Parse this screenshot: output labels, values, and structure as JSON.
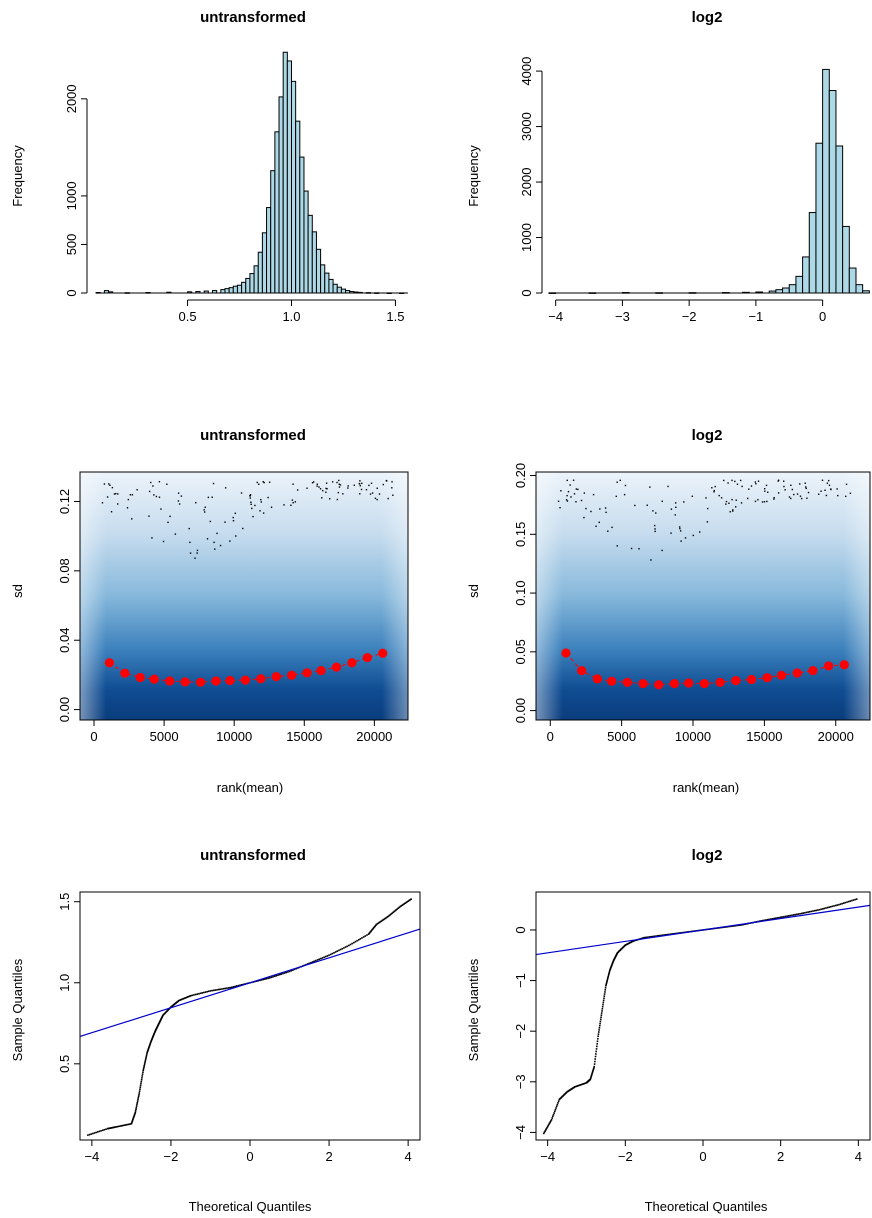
{
  "chart_data": [
    {
      "type": "bar",
      "title": "untransformed",
      "xlabel": "",
      "ylabel": "Frequency",
      "xlim": [
        0.05,
        1.57
      ],
      "ylim": [
        0,
        2400
      ],
      "x_ticks": [
        "0.5",
        "1.0",
        "1.5"
      ],
      "y_ticks": [
        "0",
        "500",
        "1000",
        "2000"
      ],
      "bar_color": "#ADD8E6",
      "bin_width": 0.02,
      "bins": [
        {
          "x0": 0.06,
          "count": 5
        },
        {
          "x0": 0.1,
          "count": 25
        },
        {
          "x0": 0.12,
          "count": 12
        },
        {
          "x0": 0.2,
          "count": 3
        },
        {
          "x0": 0.3,
          "count": 5
        },
        {
          "x0": 0.4,
          "count": 8
        },
        {
          "x0": 0.5,
          "count": 12
        },
        {
          "x0": 0.54,
          "count": 15
        },
        {
          "x0": 0.58,
          "count": 20
        },
        {
          "x0": 0.62,
          "count": 25
        },
        {
          "x0": 0.66,
          "count": 35
        },
        {
          "x0": 0.68,
          "count": 45
        },
        {
          "x0": 0.7,
          "count": 55
        },
        {
          "x0": 0.72,
          "count": 70
        },
        {
          "x0": 0.74,
          "count": 80
        },
        {
          "x0": 0.76,
          "count": 110
        },
        {
          "x0": 0.78,
          "count": 150
        },
        {
          "x0": 0.8,
          "count": 200
        },
        {
          "x0": 0.82,
          "count": 280
        },
        {
          "x0": 0.84,
          "count": 420
        },
        {
          "x0": 0.86,
          "count": 620
        },
        {
          "x0": 0.88,
          "count": 880
        },
        {
          "x0": 0.9,
          "count": 1260
        },
        {
          "x0": 0.92,
          "count": 1660
        },
        {
          "x0": 0.94,
          "count": 2020
        },
        {
          "x0": 0.96,
          "count": 2480
        },
        {
          "x0": 0.98,
          "count": 2390
        },
        {
          "x0": 1.0,
          "count": 2180
        },
        {
          "x0": 1.02,
          "count": 1770
        },
        {
          "x0": 1.04,
          "count": 1400
        },
        {
          "x0": 1.06,
          "count": 1050
        },
        {
          "x0": 1.08,
          "count": 800
        },
        {
          "x0": 1.1,
          "count": 630
        },
        {
          "x0": 1.12,
          "count": 450
        },
        {
          "x0": 1.14,
          "count": 290
        },
        {
          "x0": 1.16,
          "count": 205
        },
        {
          "x0": 1.18,
          "count": 140
        },
        {
          "x0": 1.2,
          "count": 90
        },
        {
          "x0": 1.22,
          "count": 60
        },
        {
          "x0": 1.24,
          "count": 40
        },
        {
          "x0": 1.26,
          "count": 25
        },
        {
          "x0": 1.28,
          "count": 15
        },
        {
          "x0": 1.3,
          "count": 10
        },
        {
          "x0": 1.32,
          "count": 6
        },
        {
          "x0": 1.36,
          "count": 4
        },
        {
          "x0": 1.4,
          "count": 2
        },
        {
          "x0": 1.46,
          "count": 1
        },
        {
          "x0": 1.52,
          "count": 1
        }
      ]
    },
    {
      "type": "bar",
      "title": "log2",
      "xlabel": "",
      "ylabel": "Frequency",
      "xlim": [
        -4.1,
        0.65
      ],
      "ylim": [
        0,
        4200
      ],
      "x_ticks": [
        "−4",
        "−3",
        "−2",
        "−1",
        "0"
      ],
      "y_ticks": [
        "0",
        "1000",
        "2000",
        "3000",
        "4000"
      ],
      "bar_color": "#ADD8E6",
      "bin_width": 0.1,
      "bins": [
        {
          "x0": -4.1,
          "count": 3
        },
        {
          "x0": -3.5,
          "count": 4
        },
        {
          "x0": -3.0,
          "count": 8
        },
        {
          "x0": -2.5,
          "count": 5
        },
        {
          "x0": -2.0,
          "count": 6
        },
        {
          "x0": -1.5,
          "count": 8
        },
        {
          "x0": -1.2,
          "count": 12
        },
        {
          "x0": -1.0,
          "count": 18
        },
        {
          "x0": -0.8,
          "count": 35
        },
        {
          "x0": -0.7,
          "count": 60
        },
        {
          "x0": -0.6,
          "count": 90
        },
        {
          "x0": -0.5,
          "count": 150
        },
        {
          "x0": -0.4,
          "count": 300
        },
        {
          "x0": -0.3,
          "count": 650
        },
        {
          "x0": -0.2,
          "count": 1450
        },
        {
          "x0": -0.1,
          "count": 2700
        },
        {
          "x0": 0.0,
          "count": 4030
        },
        {
          "x0": 0.1,
          "count": 3650
        },
        {
          "x0": 0.2,
          "count": 2650
        },
        {
          "x0": 0.3,
          "count": 1200
        },
        {
          "x0": 0.4,
          "count": 450
        },
        {
          "x0": 0.5,
          "count": 150
        },
        {
          "x0": 0.6,
          "count": 40
        }
      ]
    },
    {
      "type": "scatter",
      "title": "untransformed",
      "xlabel": "rank(mean)",
      "ylabel": "sd",
      "xlim": [
        -1000,
        22400
      ],
      "ylim": [
        -0.006,
        0.137
      ],
      "x_ticks": [
        "0",
        "5000",
        "10000",
        "15000",
        "20000"
      ],
      "y_ticks": [
        "0.00",
        "0.04",
        "0.08",
        "0.12"
      ],
      "background": "smoothed density, blue",
      "median_points": {
        "color": "#FF0000",
        "x": [
          1100,
          2200,
          3300,
          4300,
          5400,
          6500,
          7600,
          8700,
          9700,
          10800,
          11900,
          13000,
          14100,
          15200,
          16200,
          17300,
          18400,
          19500,
          20600
        ],
        "y": [
          0.027,
          0.021,
          0.0185,
          0.0175,
          0.0165,
          0.016,
          0.0158,
          0.0165,
          0.0168,
          0.017,
          0.0178,
          0.019,
          0.0198,
          0.0212,
          0.0225,
          0.0245,
          0.027,
          0.03,
          0.0325
        ]
      }
    },
    {
      "type": "scatter",
      "title": "log2",
      "xlabel": "rank(mean)",
      "ylabel": "sd",
      "xlim": [
        -1000,
        22400
      ],
      "ylim": [
        -0.008,
        0.203
      ],
      "x_ticks": [
        "0",
        "5000",
        "10000",
        "15000",
        "20000"
      ],
      "y_ticks": [
        "0.00",
        "0.05",
        "0.10",
        "0.15",
        "0.20"
      ],
      "background": "smoothed density, blue",
      "median_points": {
        "color": "#FF0000",
        "x": [
          1100,
          2200,
          3300,
          4300,
          5400,
          6500,
          7600,
          8700,
          9700,
          10800,
          11900,
          13000,
          14100,
          15200,
          16200,
          17300,
          18400,
          19500,
          20600
        ],
        "y": [
          0.049,
          0.034,
          0.027,
          0.025,
          0.024,
          0.023,
          0.022,
          0.023,
          0.0235,
          0.023,
          0.024,
          0.0255,
          0.0265,
          0.028,
          0.03,
          0.032,
          0.034,
          0.038,
          0.039
        ]
      }
    },
    {
      "type": "scatter",
      "title": "untransformed",
      "xlabel": "Theoretical Quantiles",
      "ylabel": "Sample Quantiles",
      "xlim": [
        -4.3,
        4.3
      ],
      "ylim": [
        0.03,
        1.56
      ],
      "x_ticks": [
        "−4",
        "−2",
        "0",
        "2",
        "4"
      ],
      "y_ticks": [
        "0.5",
        "1.0",
        "1.5"
      ],
      "reference_line": {
        "color": "#0000CD",
        "intercept": 1.0,
        "slope": 0.077
      },
      "qq_curve": {
        "x": [
          -4.1,
          -3.6,
          -3.4,
          -3.0,
          -2.9,
          -2.8,
          -2.7,
          -2.6,
          -2.5,
          -2.4,
          -2.3,
          -2.2,
          -2.0,
          -1.8,
          -1.5,
          -1.0,
          -0.5,
          0.0,
          0.5,
          1.0,
          1.5,
          2.0,
          2.5,
          3.0,
          3.2,
          3.5,
          3.8,
          4.1
        ],
        "y": [
          0.06,
          0.1,
          0.11,
          0.13,
          0.2,
          0.32,
          0.46,
          0.57,
          0.64,
          0.7,
          0.75,
          0.8,
          0.85,
          0.89,
          0.92,
          0.95,
          0.97,
          1.0,
          1.03,
          1.07,
          1.12,
          1.17,
          1.23,
          1.3,
          1.36,
          1.41,
          1.47,
          1.52
        ]
      }
    },
    {
      "type": "scatter",
      "title": "log2",
      "xlabel": "Theoretical Quantiles",
      "ylabel": "Sample Quantiles",
      "xlim": [
        -4.3,
        4.3
      ],
      "ylim": [
        -4.15,
        0.75
      ],
      "x_ticks": [
        "−4",
        "−2",
        "0",
        "2",
        "4"
      ],
      "y_ticks": [
        "−4",
        "−3",
        "−2",
        "−1",
        "0"
      ],
      "reference_line": {
        "color": "#0000CD",
        "intercept": 0.0,
        "slope": 0.113
      },
      "qq_curve": {
        "x": [
          -4.1,
          -3.9,
          -3.7,
          -3.5,
          -3.3,
          -3.0,
          -2.9,
          -2.8,
          -2.7,
          -2.6,
          -2.5,
          -2.4,
          -2.3,
          -2.2,
          -2.0,
          -1.8,
          -1.5,
          -1.0,
          -0.5,
          0.0,
          0.5,
          1.0,
          1.5,
          2.0,
          2.5,
          3.0,
          3.5,
          4.0
        ],
        "y": [
          -4.02,
          -3.75,
          -3.35,
          -3.2,
          -3.1,
          -3.02,
          -2.95,
          -2.7,
          -2.1,
          -1.6,
          -1.1,
          -0.8,
          -0.6,
          -0.45,
          -0.3,
          -0.22,
          -0.15,
          -0.1,
          -0.05,
          0.0,
          0.05,
          0.1,
          0.18,
          0.25,
          0.32,
          0.4,
          0.5,
          0.62
        ]
      }
    }
  ]
}
